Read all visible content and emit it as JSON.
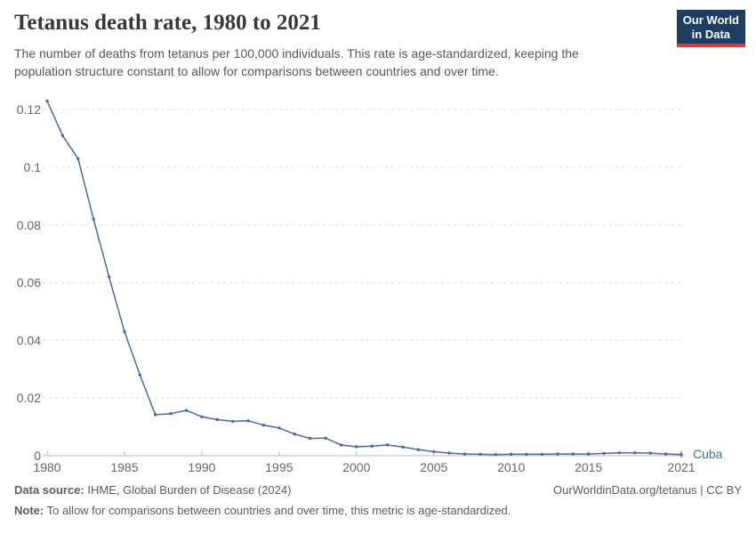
{
  "header": {
    "title": "Tetanus death rate, 1980 to 2021",
    "subtitle_line1": "The number of deaths from tetanus per 100,000 individuals. This rate is age-standardized, keeping the",
    "subtitle_line2": "population structure constant to allow for comparisons between countries and over time.",
    "logo_line1": "Our World",
    "logo_line2": "in Data"
  },
  "chart_data": {
    "type": "line",
    "title": "Tetanus death rate, 1980 to 2021",
    "xlabel": "",
    "ylabel": "",
    "x": [
      1980,
      1981,
      1982,
      1983,
      1984,
      1985,
      1986,
      1987,
      1988,
      1989,
      1990,
      1991,
      1992,
      1993,
      1994,
      1995,
      1996,
      1997,
      1998,
      1999,
      2000,
      2001,
      2002,
      2003,
      2004,
      2005,
      2006,
      2007,
      2008,
      2009,
      2010,
      2011,
      2012,
      2013,
      2014,
      2015,
      2016,
      2017,
      2018,
      2019,
      2020,
      2021
    ],
    "series": [
      {
        "name": "Cuba",
        "color": "#4C6A9C",
        "values": [
          0.123,
          0.111,
          0.103,
          0.082,
          0.062,
          0.043,
          0.028,
          0.0142,
          0.0146,
          0.0157,
          0.0135,
          0.0125,
          0.0119,
          0.0121,
          0.0106,
          0.0096,
          0.0075,
          0.006,
          0.0061,
          0.0037,
          0.0031,
          0.0033,
          0.0037,
          0.003,
          0.0021,
          0.0014,
          0.0009,
          0.0006,
          0.0005,
          0.0004,
          0.0005,
          0.0005,
          0.0005,
          0.0006,
          0.0006,
          0.0006,
          0.0008,
          0.001,
          0.001,
          0.0009,
          0.0006,
          0.0004
        ]
      }
    ],
    "x_ticks": [
      1980,
      1985,
      1990,
      1995,
      2000,
      2005,
      2010,
      2015,
      2021
    ],
    "x_tick_labels": [
      "1980",
      "1985",
      "1990",
      "1995",
      "2000",
      "2005",
      "2010",
      "2015",
      "2021"
    ],
    "y_ticks": [
      0,
      0.02,
      0.04,
      0.06,
      0.08,
      0.1,
      0.12
    ],
    "y_tick_labels": [
      "0",
      "0.02",
      "0.04",
      "0.06",
      "0.08",
      "0.1",
      "0.12"
    ],
    "xlim": [
      1980,
      2021
    ],
    "ylim": [
      0,
      0.1235
    ],
    "grid": "horizontal-dashed",
    "legend": "none",
    "entity_label": "Cuba"
  },
  "footer": {
    "source_label": "Data source:",
    "source_text": " IHME, Global Burden of Disease (2024)",
    "credit": "OurWorldinData.org/tetanus | CC BY",
    "note_label": "Note:",
    "note_text": " To allow for comparisons between countries and over time, this metric is age-standardized."
  },
  "colors": {
    "line": "#4C6A9C",
    "logo_bg": "#1d3d63",
    "logo_stripe": "#d73c34",
    "grid": "#dcdcdc",
    "axis": "#b9b9b9",
    "tick_text": "#666666",
    "title_text": "#383838",
    "subtitle_text": "#575757",
    "footer_text": "#5b5b5b"
  }
}
